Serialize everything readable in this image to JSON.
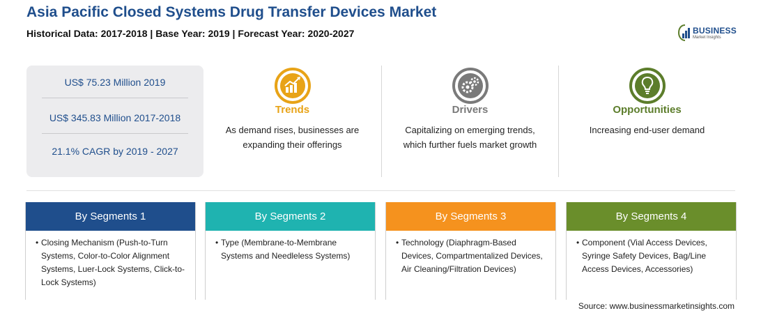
{
  "header": {
    "title": "Asia Pacific Closed Systems Drug Transfer Devices Market",
    "subtitle": "Historical Data: 2017-2018 | Base Year: 2019 | Forecast Year: 2020-2027"
  },
  "logo": {
    "brand": "BUSINESS",
    "sub": "Market Insights",
    "icon": "bar-chart-logo-icon"
  },
  "stats": [
    "US$ 75.23 Million 2019",
    "US$ 345.83 Million 2017-2018",
    "21.1% CAGR by 2019 - 2027"
  ],
  "columns": [
    {
      "label": "Trends",
      "text": "As demand rises, businesses are expanding their offerings",
      "color": "#e8a317",
      "icon": "trending-chart-icon"
    },
    {
      "label": "Drivers",
      "text": "Capitalizing on emerging trends, which further fuels market growth",
      "color": "#7a7a7a",
      "icon": "gears-icon"
    },
    {
      "label": "Opportunities",
      "text": "Increasing end-user demand",
      "color": "#5c7d2b",
      "icon": "lightbulb-icon"
    }
  ],
  "segments": [
    {
      "title": "By Segments 1",
      "color": "#1f4e8c",
      "bullet": "•",
      "text": "Closing Mechanism (Push-to-Turn Systems, Color-to-Color Alignment Systems, Luer-Lock Systems, Click-to-Lock Systems)"
    },
    {
      "title": "By Segments 2",
      "color": "#1fb3b0",
      "bullet": "•",
      "text": "Type (Membrane-to-Membrane Systems and Needleless Systems)"
    },
    {
      "title": "By Segments 3",
      "color": "#f5921e",
      "bullet": "•",
      "text": "Technology (Diaphragm-Based Devices, Compartmentalized Devices, Air Cleaning/Filtration Devices)"
    },
    {
      "title": "By Segments 4",
      "color": "#6a8e2b",
      "bullet": "•",
      "text": "Component (Vial Access Devices, Syringe Safety Devices, Bag/Line Access Devices, Accessories)"
    }
  ],
  "source": "Source: www.businessmarketinsights.com"
}
